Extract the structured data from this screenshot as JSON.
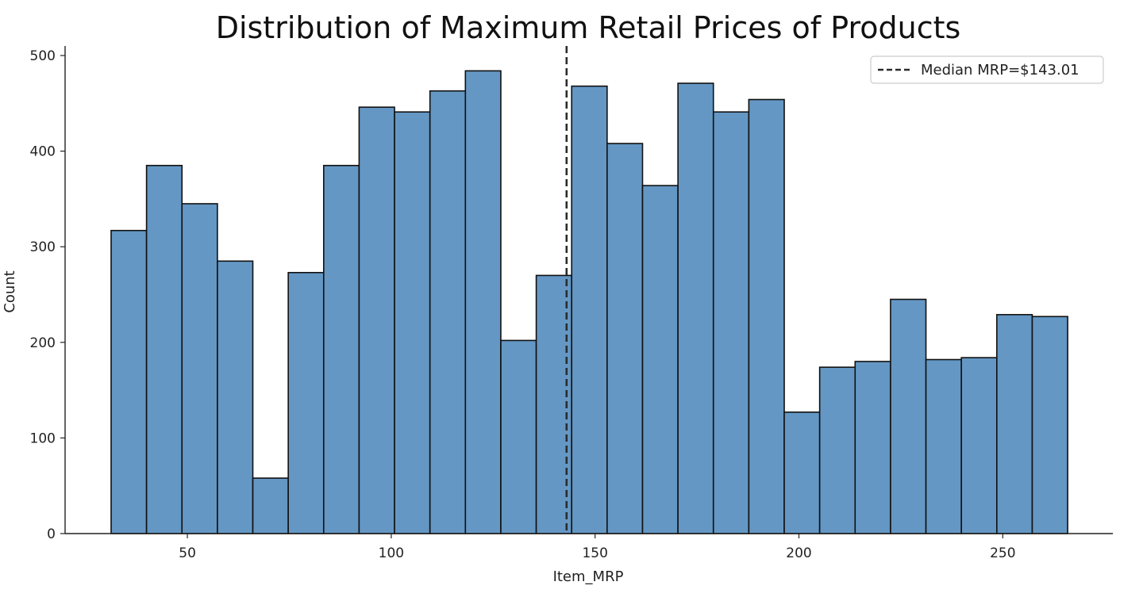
{
  "chart_data": {
    "type": "bar",
    "title": "Distribution of Maximum Retail Prices of Products",
    "xlabel": "Item_MRP",
    "ylabel": "Count",
    "xlim": [
      20.0,
      277.0
    ],
    "ylim": [
      0,
      510
    ],
    "xticks": [
      50,
      100,
      150,
      200,
      250
    ],
    "yticks": [
      0,
      100,
      200,
      300,
      400,
      500
    ],
    "bin_edges": [
      31.29,
      39.98,
      48.67,
      57.36,
      66.05,
      74.74,
      83.43,
      92.12,
      100.81,
      109.5,
      118.19,
      126.88,
      135.57,
      144.26,
      152.95,
      161.64,
      170.33,
      179.02,
      187.71,
      196.4,
      205.09,
      213.78,
      222.47,
      231.16,
      239.85,
      248.54,
      257.23,
      265.92
    ],
    "values": [
      317,
      385,
      345,
      285,
      58,
      273,
      385,
      446,
      441,
      463,
      484,
      202,
      270,
      468,
      408,
      364,
      471,
      441,
      454,
      127,
      174,
      180,
      245,
      182,
      184,
      229,
      227
    ],
    "median_line": {
      "x": 143.01,
      "label": "Median MRP=$143.01"
    },
    "legend_position": "top-right",
    "grid": false,
    "bar_color": "#6497c4",
    "edge_color": "#111111"
  }
}
